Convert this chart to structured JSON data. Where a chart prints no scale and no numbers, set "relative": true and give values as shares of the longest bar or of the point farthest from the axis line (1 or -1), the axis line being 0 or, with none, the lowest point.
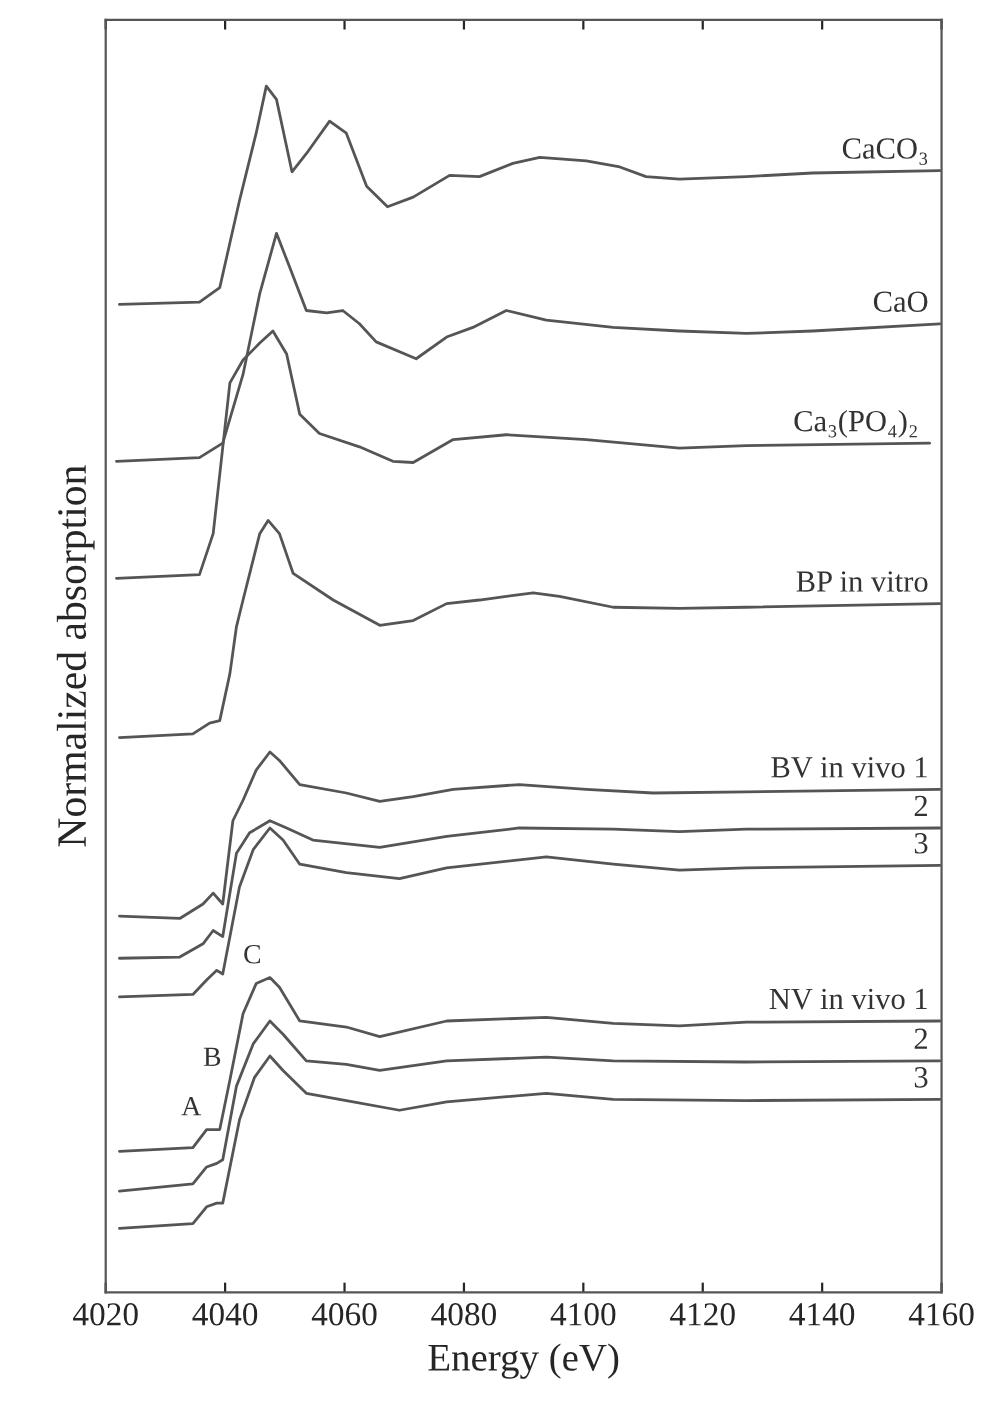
{
  "chart_data": {
    "type": "line",
    "relative": true,
    "xlabel": "Energy (eV)",
    "ylabel": "Normalized absorption",
    "xlim": [
      4020,
      4160
    ],
    "xticks": [
      4020,
      4040,
      4060,
      4080,
      4100,
      4120,
      4140,
      4160
    ],
    "grid": false,
    "legend": false,
    "tick_labels": "x",
    "line_style": "solid",
    "marker": "none",
    "annotations": [
      {
        "text": "A",
        "x": 4037.4,
        "y": 0.135
      },
      {
        "text": "B",
        "x": 4040.8,
        "y": 0.176
      },
      {
        "text": "C",
        "x": 4047.5,
        "y": 0.261
      }
    ],
    "series": [
      {
        "name": "CaCO₃",
        "color": "#555555",
        "x": [
          4022.3,
          4035.7,
          4039.1,
          4042.4,
          4045.2,
          4046.9,
          4048.6,
          4051.2,
          4053.6,
          4057.5,
          4060.3,
          4063.7,
          4067.2,
          4071.5,
          4077.6,
          4082.6,
          4088.2,
          4092.7,
          4100.5,
          4106.1,
          4110.5,
          4116.1,
          4127.3,
          4138.4,
          4159.7
        ],
        "values": [
          0.819,
          0.821,
          0.833,
          0.905,
          0.961,
          1.0,
          0.989,
          0.929,
          0.944,
          0.971,
          0.961,
          0.917,
          0.9,
          0.908,
          0.926,
          0.925,
          0.936,
          0.941,
          0.938,
          0.933,
          0.925,
          0.923,
          0.925,
          0.928,
          0.93
        ]
      },
      {
        "name": "CaO",
        "color": "#555555",
        "x": [
          4021.8,
          4035.7,
          4039.6,
          4043.0,
          4045.8,
          4048.6,
          4050.8,
          4053.6,
          4057.0,
          4059.7,
          4062.5,
          4065.3,
          4072.0,
          4077.1,
          4081.5,
          4087.1,
          4093.8,
          4105.0,
          4116.1,
          4127.3,
          4138.4,
          4159.7
        ],
        "values": [
          0.689,
          0.692,
          0.704,
          0.761,
          0.828,
          0.878,
          0.85,
          0.814,
          0.812,
          0.814,
          0.803,
          0.788,
          0.774,
          0.792,
          0.8,
          0.814,
          0.806,
          0.8,
          0.797,
          0.795,
          0.797,
          0.803
        ]
      },
      {
        "name": "Ca₃(PO₄)₂",
        "color": "#555555",
        "x": [
          4021.8,
          4035.7,
          4038.0,
          4040.8,
          4043.0,
          4045.8,
          4048.0,
          4050.3,
          4052.5,
          4055.8,
          4062.5,
          4068.1,
          4071.5,
          4078.2,
          4087.1,
          4100.5,
          4116.1,
          4127.3,
          4158.0
        ],
        "values": [
          0.592,
          0.595,
          0.629,
          0.754,
          0.773,
          0.787,
          0.797,
          0.778,
          0.728,
          0.712,
          0.701,
          0.689,
          0.688,
          0.707,
          0.711,
          0.707,
          0.7,
          0.702,
          0.704
        ]
      },
      {
        "name": "BP in vitro",
        "color": "#555555",
        "x": [
          4022.3,
          4034.6,
          4037.4,
          4039.1,
          4040.8,
          4041.9,
          4043.0,
          4045.8,
          4047.2,
          4049.1,
          4051.4,
          4058.1,
          4065.9,
          4071.5,
          4077.1,
          4082.6,
          4091.6,
          4096.0,
          4105.0,
          4116.1,
          4127.3,
          4159.7
        ],
        "values": [
          0.46,
          0.463,
          0.472,
          0.474,
          0.513,
          0.552,
          0.574,
          0.629,
          0.64,
          0.629,
          0.596,
          0.574,
          0.553,
          0.557,
          0.571,
          0.574,
          0.58,
          0.577,
          0.568,
          0.567,
          0.568,
          0.571
        ]
      },
      {
        "name": "BV in vivo 1",
        "color": "#555555",
        "x": [
          4022.3,
          4032.4,
          4036.3,
          4038.0,
          4039.6,
          4041.3,
          4043.0,
          4045.2,
          4047.5,
          4049.1,
          4052.5,
          4060.3,
          4065.9,
          4071.5,
          4078.2,
          4089.3,
          4100.5,
          4111.7,
          4127.3,
          4159.7
        ],
        "values": [
          0.312,
          0.31,
          0.322,
          0.331,
          0.322,
          0.391,
          0.408,
          0.433,
          0.448,
          0.441,
          0.421,
          0.414,
          0.407,
          0.411,
          0.417,
          0.421,
          0.417,
          0.414,
          0.415,
          0.417
        ]
      },
      {
        "name": "2",
        "color": "#555555",
        "x": [
          4022.3,
          4032.4,
          4036.3,
          4038.0,
          4039.6,
          4041.9,
          4044.1,
          4047.5,
          4050.3,
          4054.7,
          4065.9,
          4077.1,
          4089.3,
          4105.0,
          4116.1,
          4127.3,
          4159.7
        ],
        "values": [
          0.277,
          0.278,
          0.289,
          0.3,
          0.295,
          0.364,
          0.381,
          0.391,
          0.385,
          0.375,
          0.369,
          0.378,
          0.385,
          0.384,
          0.382,
          0.384,
          0.385
        ]
      },
      {
        "name": "3",
        "color": "#555555",
        "x": [
          4022.3,
          4034.6,
          4036.9,
          4038.6,
          4039.6,
          4042.4,
          4044.7,
          4047.5,
          4049.7,
          4052.5,
          4060.3,
          4069.2,
          4077.1,
          4093.8,
          4105.0,
          4116.1,
          4127.3,
          4159.7
        ],
        "values": [
          0.245,
          0.247,
          0.259,
          0.267,
          0.264,
          0.336,
          0.367,
          0.385,
          0.375,
          0.355,
          0.348,
          0.343,
          0.352,
          0.361,
          0.355,
          0.35,
          0.352,
          0.354
        ]
      },
      {
        "name": "NV in vivo 1",
        "color": "#555555",
        "x": [
          4022.3,
          4034.6,
          4036.9,
          4039.1,
          4040.8,
          4043.0,
          4045.2,
          4047.5,
          4049.1,
          4052.5,
          4060.3,
          4065.9,
          4077.1,
          4093.8,
          4105.0,
          4116.1,
          4127.3,
          4159.7
        ],
        "values": [
          0.117,
          0.12,
          0.135,
          0.135,
          0.176,
          0.231,
          0.256,
          0.261,
          0.253,
          0.225,
          0.22,
          0.212,
          0.225,
          0.228,
          0.223,
          0.221,
          0.224,
          0.225
        ]
      },
      {
        "name": "2",
        "color": "#555555",
        "x": [
          4022.3,
          4034.6,
          4036.9,
          4038.6,
          4039.6,
          4041.9,
          4044.7,
          4047.5,
          4049.7,
          4053.6,
          4060.3,
          4065.9,
          4077.1,
          4093.8,
          4105.0,
          4127.3,
          4159.7
        ],
        "values": [
          0.084,
          0.09,
          0.104,
          0.107,
          0.11,
          0.171,
          0.206,
          0.225,
          0.214,
          0.192,
          0.189,
          0.184,
          0.192,
          0.195,
          0.192,
          0.191,
          0.192
        ]
      },
      {
        "name": "3",
        "color": "#555555",
        "x": [
          4022.3,
          4034.6,
          4036.9,
          4038.6,
          4039.6,
          4042.4,
          4044.9,
          4047.5,
          4049.7,
          4053.6,
          4060.3,
          4069.2,
          4077.1,
          4093.8,
          4105.0,
          4127.3,
          4159.7
        ],
        "values": [
          0.053,
          0.057,
          0.071,
          0.074,
          0.074,
          0.143,
          0.178,
          0.196,
          0.184,
          0.165,
          0.159,
          0.151,
          0.158,
          0.165,
          0.16,
          0.159,
          0.16
        ]
      }
    ]
  }
}
